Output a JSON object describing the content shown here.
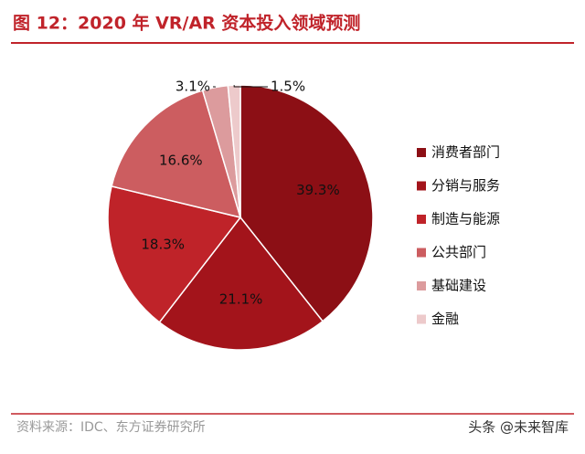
{
  "chart_data": {
    "type": "pie",
    "title": "图 12：2020 年 VR/AR 资本投入领域预测",
    "categories": [
      "消费者部门",
      "分销与服务",
      "制造与能源",
      "公共部门",
      "基础建设",
      "金融"
    ],
    "values": [
      39.3,
      21.1,
      18.3,
      16.6,
      3.1,
      1.5
    ],
    "value_labels": [
      "39.3%",
      "21.1%",
      "18.3%",
      "16.6%",
      "3.1%",
      "1.5%"
    ],
    "colors": [
      "#8c0f15",
      "#a3141b",
      "#bf2329",
      "#cc5d60",
      "#dc9b9d",
      "#edcacb"
    ],
    "source": "资料来源：IDC、东方证券研究所",
    "watermark": "头条 @未来智库"
  }
}
